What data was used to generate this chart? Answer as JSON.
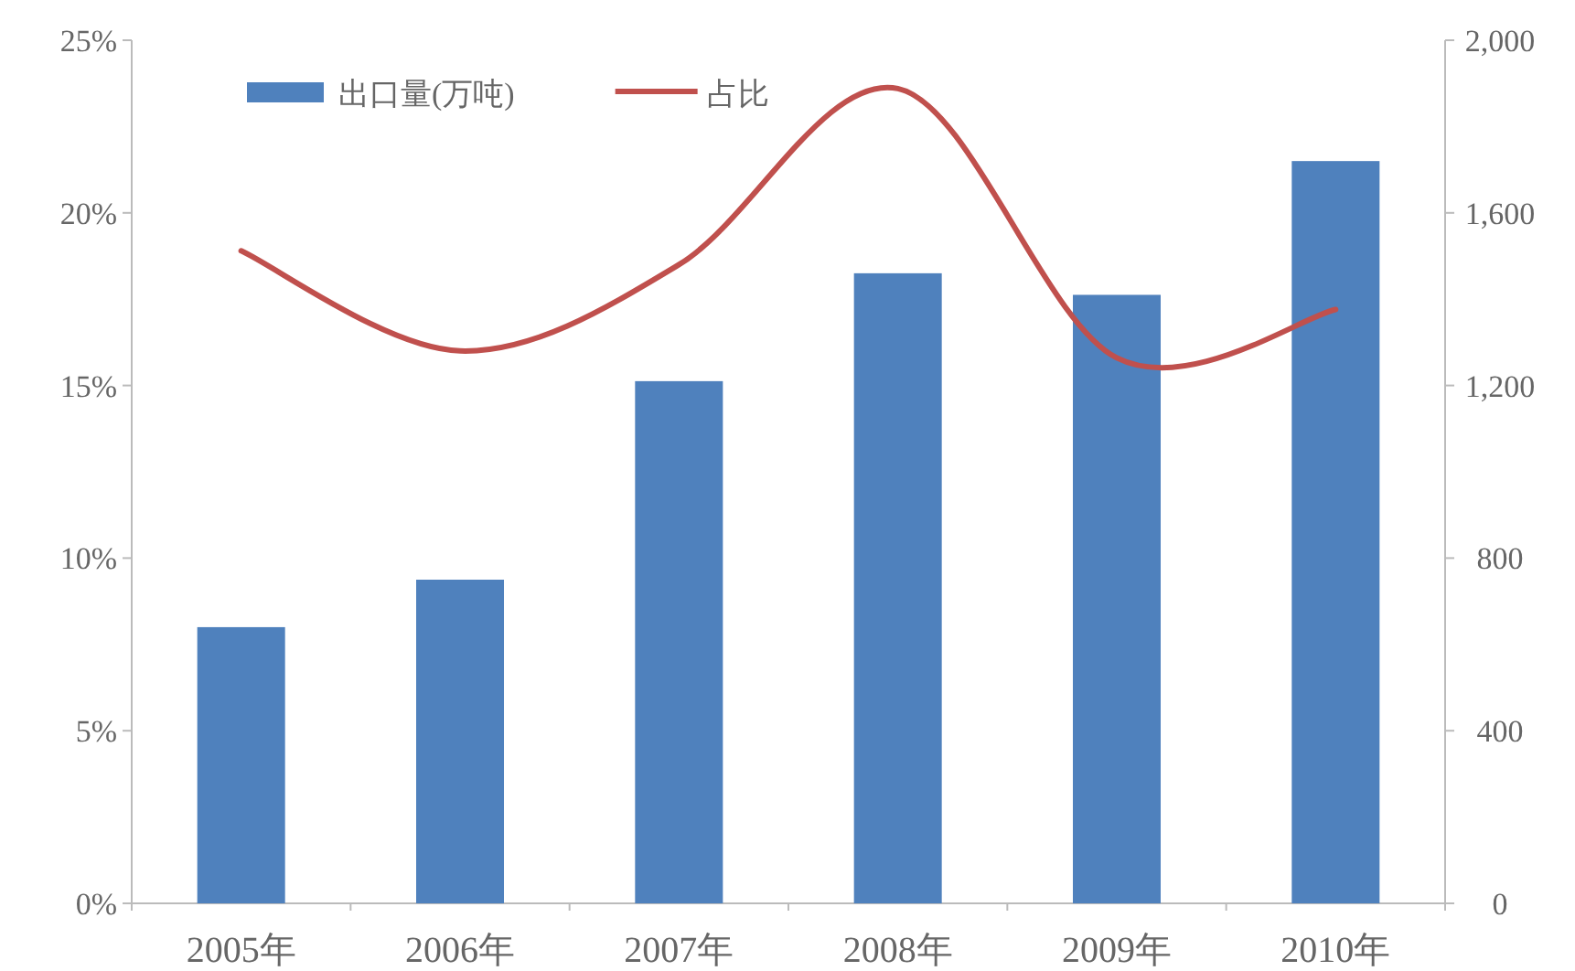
{
  "chart_data": {
    "type": "bar",
    "categories": [
      "2005年",
      "2006年",
      "2007年",
      "2008年",
      "2009年",
      "2010年"
    ],
    "series": [
      {
        "name": "出口量(万吨)",
        "axis": "y2",
        "color": "#4f81bd",
        "values": [
          640,
          750,
          1210,
          1460,
          1410,
          1720
        ]
      },
      {
        "name": "占比",
        "type": "line",
        "axis": "y",
        "color": "#c0504d",
        "values": [
          18.9,
          16.0,
          18.5,
          23.6,
          15.8,
          17.2
        ]
      }
    ],
    "ylim": [
      0,
      25
    ],
    "yticks": [
      {
        "value": 0,
        "label": "0%"
      },
      {
        "value": 5,
        "label": "5%"
      },
      {
        "value": 10,
        "label": "10%"
      },
      {
        "value": 15,
        "label": "15%"
      },
      {
        "value": 20,
        "label": "20%"
      },
      {
        "value": 25,
        "label": "25%"
      }
    ],
    "y2lim": [
      0,
      2000
    ],
    "y2ticks": [
      0,
      400,
      800,
      {
        "value": 1200,
        "label": "1,200"
      },
      {
        "value": 1600,
        "label": "1,600"
      },
      {
        "value": 2000,
        "label": "2,000"
      }
    ],
    "legend": "top left"
  }
}
